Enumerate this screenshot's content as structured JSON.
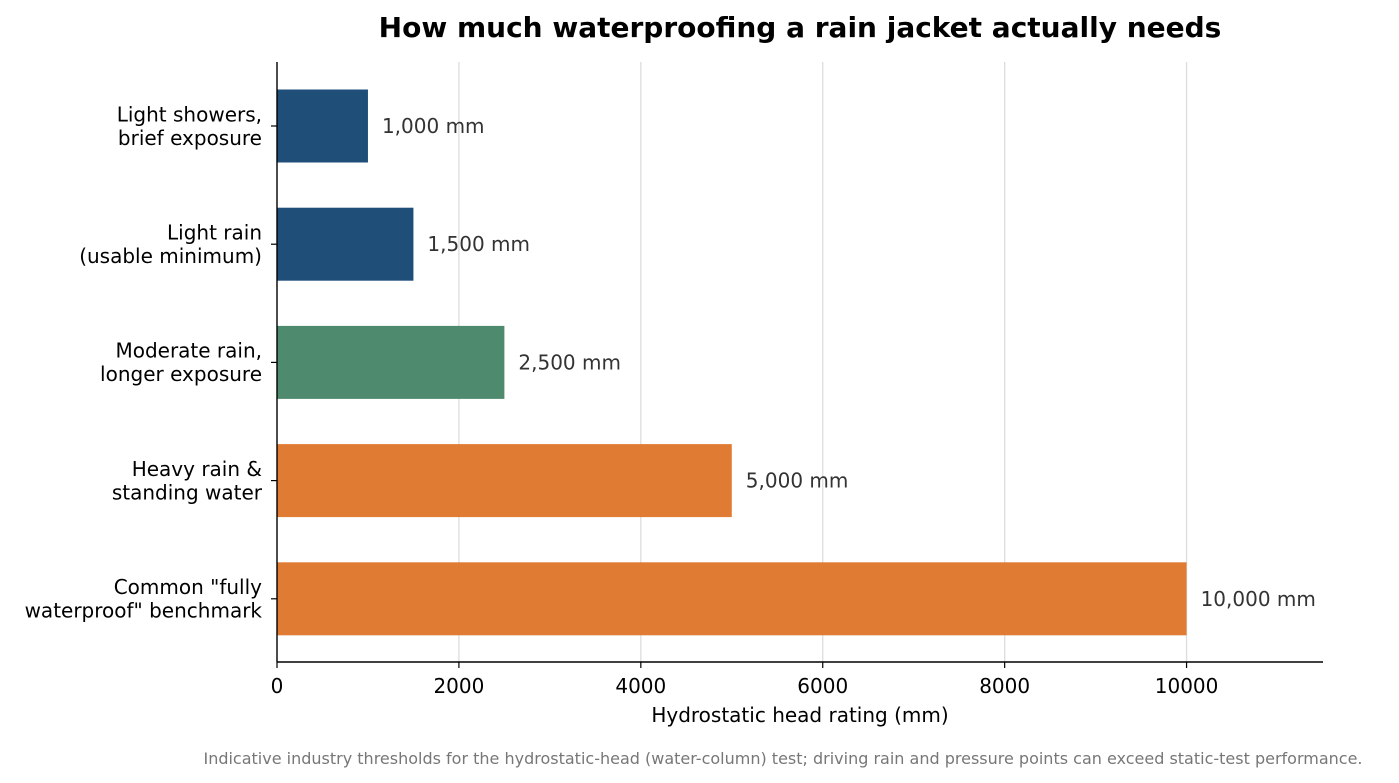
{
  "chart_data": {
    "type": "bar",
    "orientation": "horizontal",
    "title": "How much waterproofing a rain jacket actually needs",
    "xlabel": "Hydrostatic head rating (mm)",
    "ylabel": "",
    "xlim": [
      0,
      11500
    ],
    "xticks": [
      0,
      2000,
      4000,
      6000,
      8000,
      10000
    ],
    "xtick_labels": [
      "0",
      "2000",
      "4000",
      "6000",
      "8000",
      "10000"
    ],
    "grid": "vertical",
    "categories": [
      [
        "Light showers,",
        "brief exposure"
      ],
      [
        "Light rain",
        "(usable minimum)"
      ],
      [
        "Moderate rain,",
        "longer exposure"
      ],
      [
        "Heavy rain &",
        "standing water"
      ],
      [
        "Common \"fully",
        "waterproof\" benchmark"
      ]
    ],
    "values": [
      1000,
      1500,
      2500,
      5000,
      10000
    ],
    "value_labels": [
      "1,000 mm",
      "1,500 mm",
      "2,500 mm",
      "5,000 mm",
      "10,000 mm"
    ],
    "bar_colors": [
      "#1f4e79",
      "#1f4e79",
      "#4e8b6e",
      "#e07b33",
      "#e07b33"
    ],
    "footnote": "Indicative industry thresholds for the hydrostatic-head (water-column) test; driving rain and pressure points can exceed static-test performance."
  }
}
